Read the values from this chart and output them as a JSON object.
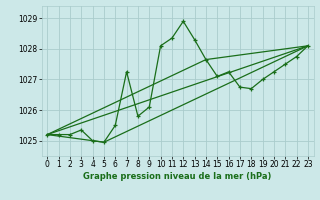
{
  "title": "Graphe pression niveau de la mer (hPa)",
  "background_color": "#cce8e8",
  "grid_color": "#aacccc",
  "line_color": "#1a6e1a",
  "x_ticks": [
    0,
    1,
    2,
    3,
    4,
    5,
    6,
    7,
    8,
    9,
    10,
    11,
    12,
    13,
    14,
    15,
    16,
    17,
    18,
    19,
    20,
    21,
    22,
    23
  ],
  "y_ticks": [
    1025,
    1026,
    1027,
    1028,
    1029
  ],
  "ylim": [
    1024.5,
    1029.4
  ],
  "xlim": [
    -0.5,
    23.5
  ],
  "series1_x": [
    0,
    1,
    2,
    3,
    4,
    5,
    6,
    7,
    8,
    9,
    10,
    11,
    12,
    13,
    14,
    15,
    16,
    17,
    18,
    19,
    20,
    21,
    22,
    23
  ],
  "series1_y": [
    1025.2,
    1025.2,
    1025.2,
    1025.35,
    1025.0,
    1024.95,
    1025.5,
    1027.25,
    1025.8,
    1026.1,
    1028.1,
    1028.35,
    1028.9,
    1028.3,
    1027.65,
    1027.1,
    1027.25,
    1026.75,
    1026.7,
    1027.0,
    1027.25,
    1027.5,
    1027.75,
    1028.1
  ],
  "series2_x": [
    0,
    23
  ],
  "series2_y": [
    1025.2,
    1028.1
  ],
  "series3_x": [
    0,
    14,
    23
  ],
  "series3_y": [
    1025.2,
    1027.65,
    1028.1
  ],
  "series4_x": [
    0,
    5,
    23
  ],
  "series4_y": [
    1025.2,
    1024.95,
    1028.1
  ],
  "title_fontsize": 6.0,
  "tick_fontsize": 5.5
}
